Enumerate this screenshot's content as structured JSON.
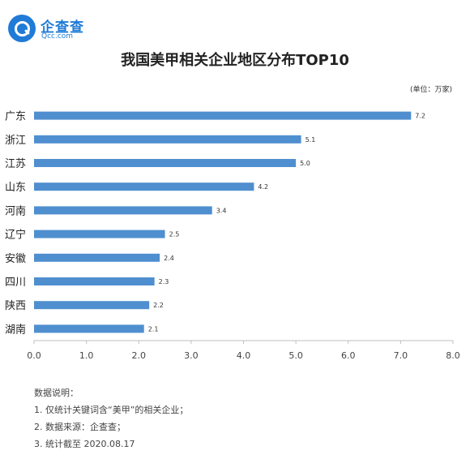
{
  "brand": {
    "name": "企查查",
    "url": "Qcc.com",
    "color": "#1f7bd6"
  },
  "chart_data": {
    "type": "bar",
    "orientation": "horizontal",
    "title": "我国美甲相关企业地区分布TOP10",
    "unit_note": "(单位：万家)",
    "categories": [
      "广东",
      "浙江",
      "江苏",
      "山东",
      "河南",
      "辽宁",
      "安徽",
      "四川",
      "陕西",
      "湖南"
    ],
    "values": [
      7.2,
      5.1,
      5.0,
      4.2,
      3.4,
      2.5,
      2.4,
      2.3,
      2.2,
      2.1
    ],
    "value_labels": [
      "7.2",
      "5.1",
      "5.0",
      "4.2",
      "3.4",
      "2.5",
      "2.4",
      "2.3",
      "2.2",
      "2.1"
    ],
    "xlim": [
      0,
      8
    ],
    "x_ticks": [
      "0.0",
      "1.0",
      "2.0",
      "3.0",
      "4.0",
      "5.0",
      "6.0",
      "7.0",
      "8.0"
    ],
    "grid": false,
    "bar_color": "#4f8fcf"
  },
  "notes": {
    "heading": "数据说明：",
    "items": [
      "1. 仅统计关键词含“美甲”的相关企业；",
      "2. 数据来源：企查查；",
      "3. 统计截至 2020.08.17"
    ]
  }
}
